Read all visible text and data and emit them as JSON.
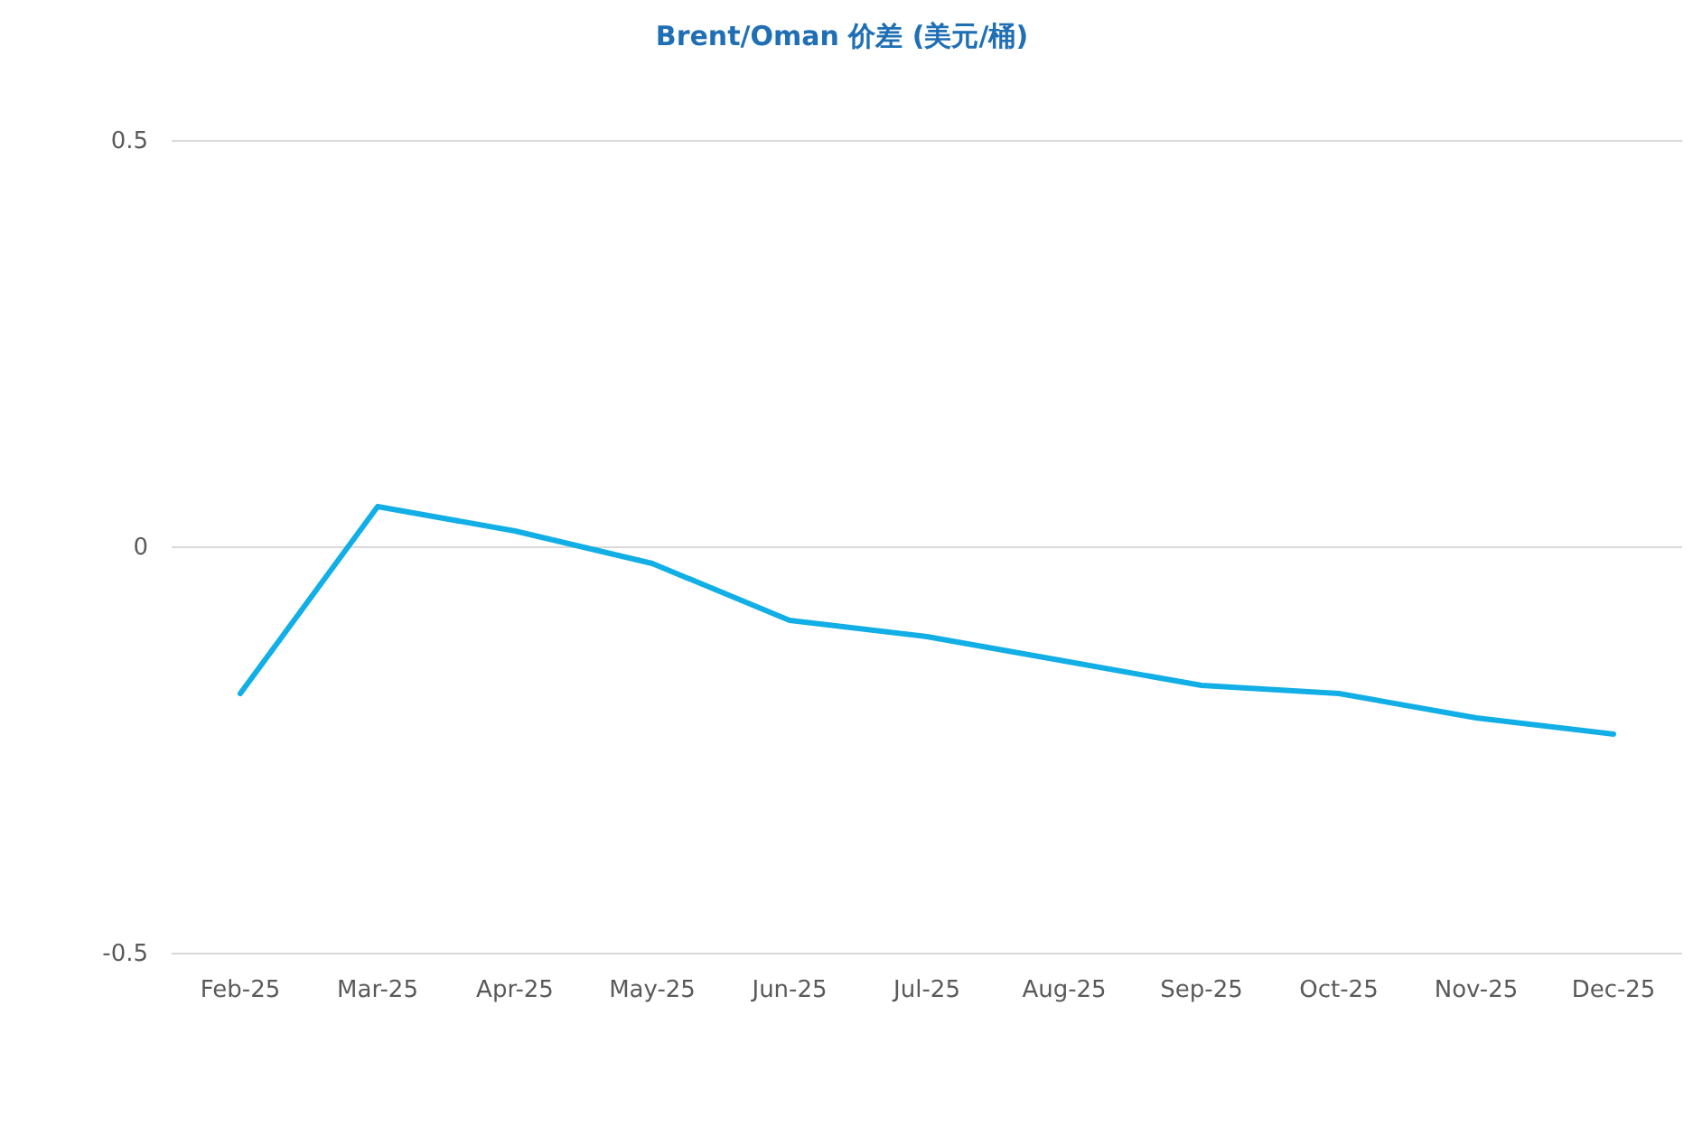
{
  "chart_data": {
    "type": "line",
    "title": "Brent/Oman 价差 (美元/桶)",
    "categories": [
      "Feb-25",
      "Mar-25",
      "Apr-25",
      "May-25",
      "Jun-25",
      "Jul-25",
      "Aug-25",
      "Sep-25",
      "Oct-25",
      "Nov-25",
      "Dec-25"
    ],
    "series": [
      {
        "color": "#12aee6",
        "values": [
          -0.18,
          0.05,
          0.02,
          -0.02,
          -0.09,
          -0.11,
          -0.14,
          -0.17,
          -0.18,
          -0.21,
          -0.23
        ]
      }
    ],
    "ylim": [
      -0.5,
      0.5
    ],
    "yticks": [
      -0.5,
      0,
      0.5
    ],
    "grid": "y",
    "marker": "none",
    "line_style": "solid"
  }
}
